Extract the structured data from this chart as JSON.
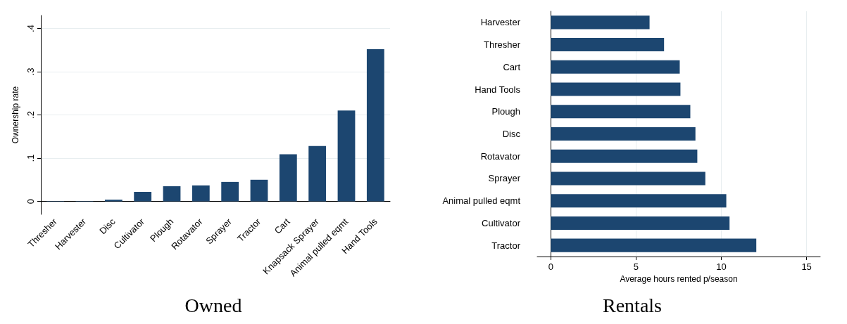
{
  "chart_data": [
    {
      "type": "bar",
      "title": "Owned",
      "ylabel": "Ownership rate",
      "categories": [
        "Thresher",
        "Harvester",
        "Disc",
        "Cultivator",
        "Plough",
        "Rotavator",
        "Sprayer",
        "Tractor",
        "Cart",
        "Knapsack Sprayer",
        "Animal pulled eqmt",
        "Hand Tools"
      ],
      "values": [
        0.001,
        0.001,
        0.004,
        0.022,
        0.035,
        0.037,
        0.045,
        0.05,
        0.109,
        0.128,
        0.21,
        0.352
      ],
      "color": "#1c4670",
      "ylim": [
        -0.03,
        0.43
      ],
      "yticks": [
        0,
        {
          "value": 0.1,
          "label": ".1"
        },
        {
          "value": 0.2,
          "label": ".2"
        },
        {
          "value": 0.3,
          "label": ".3"
        },
        {
          "value": 0.4,
          "label": ".4"
        }
      ],
      "grid": "y"
    },
    {
      "type": "bar",
      "title": "Rentals",
      "xlabel": "Average hours rented p/season",
      "orientation": "horizontal",
      "categories": [
        "Harvester",
        "Thresher",
        "Cart",
        "Hand Tools",
        "Plough",
        "Disc",
        "Rotavator",
        "Sprayer",
        "Animal pulled eqmt",
        "Cultivator",
        "Tractor"
      ],
      "values": [
        5.79,
        6.64,
        7.56,
        7.6,
        8.18,
        8.48,
        8.59,
        9.06,
        10.29,
        10.48,
        12.05
      ],
      "color": "#1c4670",
      "xlim": [
        -0.8,
        15.8
      ],
      "xticks": [
        0,
        5,
        10,
        15
      ],
      "grid": "x"
    }
  ]
}
